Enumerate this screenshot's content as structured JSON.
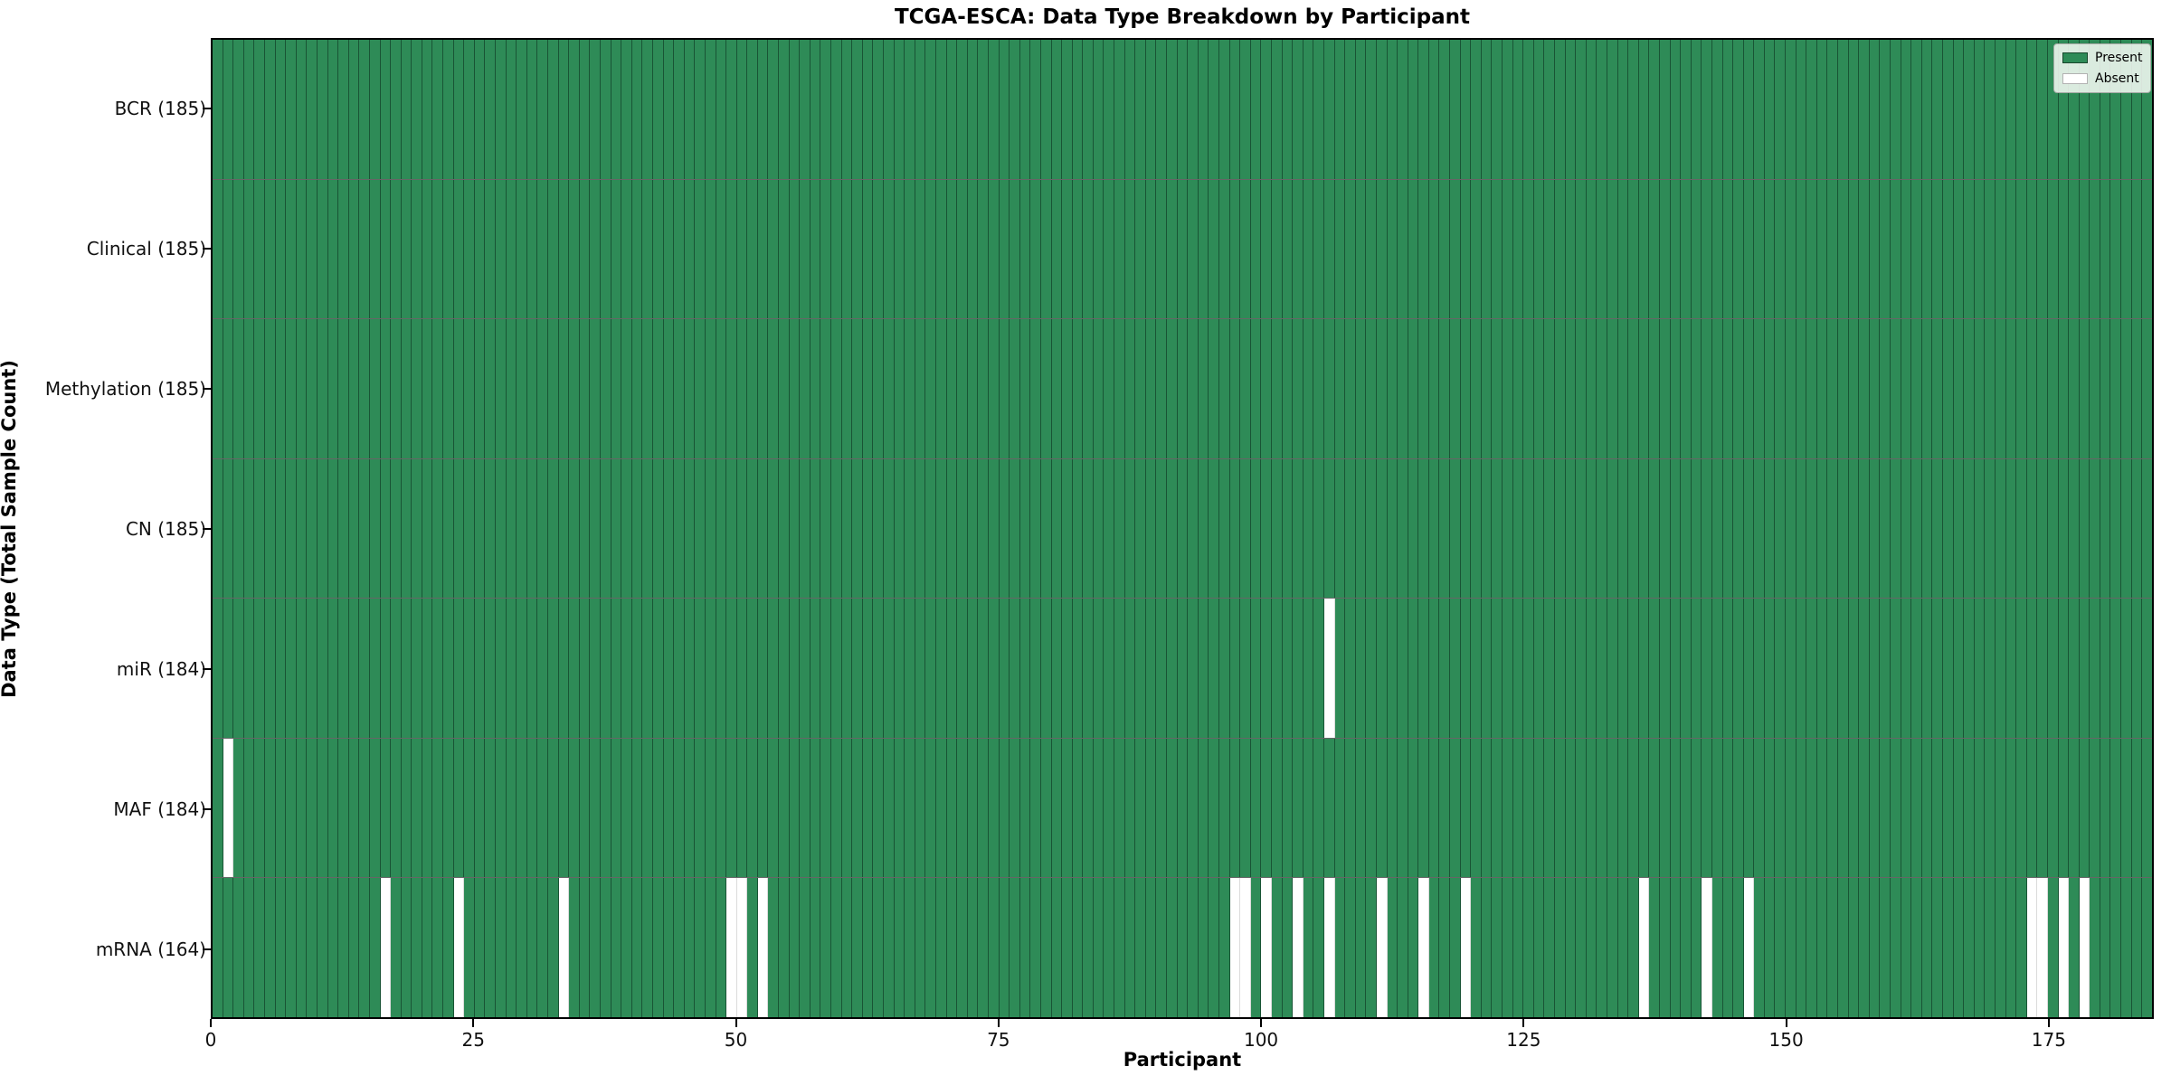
{
  "figure": {
    "title": "TCGA-ESCA: Data Type Breakdown by Participant",
    "xlabel": "Participant",
    "ylabel": "Data Type (Total Sample Count)"
  },
  "chart_data": {
    "type": "heatmap",
    "title": "TCGA-ESCA: Data Type Breakdown by Participant",
    "xlabel": "Participant",
    "ylabel": "Data Type (Total Sample Count)",
    "n_participants": 185,
    "x_ticks": [
      0,
      25,
      50,
      75,
      100,
      125,
      150,
      175
    ],
    "grid": "cell-edges",
    "legend_position": "upper right",
    "colors": {
      "present": "#2E8B57",
      "absent": "#ffffff"
    },
    "legend": [
      {
        "label": "Present",
        "state": "present"
      },
      {
        "label": "Absent",
        "state": "absent"
      }
    ],
    "rows": [
      {
        "label": "BCR (185)",
        "total_present": 185,
        "absent_participants": []
      },
      {
        "label": "Clinical (185)",
        "total_present": 185,
        "absent_participants": []
      },
      {
        "label": "Methylation (185)",
        "total_present": 185,
        "absent_participants": []
      },
      {
        "label": "CN (185)",
        "total_present": 185,
        "absent_participants": []
      },
      {
        "label": "miR (184)",
        "total_present": 184,
        "absent_participants": [
          106
        ]
      },
      {
        "label": "MAF (184)",
        "total_present": 184,
        "absent_participants": [
          1
        ]
      },
      {
        "label": "mRNA (164)",
        "total_present": 164,
        "absent_participants": [
          16,
          23,
          33,
          49,
          50,
          52,
          97,
          98,
          100,
          103,
          106,
          111,
          115,
          119,
          136,
          142,
          146,
          173,
          174,
          176,
          178
        ]
      }
    ]
  }
}
